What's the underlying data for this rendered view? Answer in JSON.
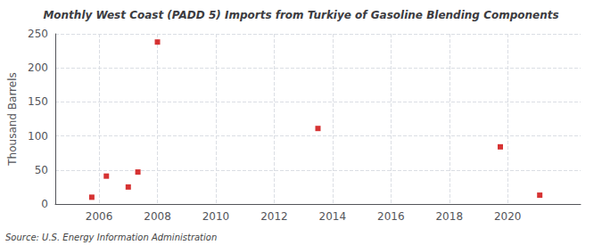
{
  "chart_data": {
    "type": "scatter",
    "title": "Monthly West Coast (PADD 5) Imports from Turkiye of Gasoline Blending Components",
    "ylabel": "Thousand Barrels",
    "annotations": [
      "Source: U.S. Energy Information Administration"
    ],
    "x": [
      2005.75,
      2006.25,
      2007.0,
      2007.33,
      2008.0,
      2013.5,
      2019.75,
      2021.1
    ],
    "values": [
      10,
      41,
      25,
      47,
      238,
      111,
      84,
      13
    ],
    "color": "#cc0000",
    "marker": "square",
    "xlim": [
      2004.5,
      2022.5
    ],
    "xticks": [
      2006,
      2008,
      2010,
      2012,
      2014,
      2016,
      2018,
      2020
    ],
    "ylim": [
      0,
      250
    ],
    "yticks": [
      0,
      50,
      100,
      150,
      200,
      250
    ],
    "grid": true
  }
}
